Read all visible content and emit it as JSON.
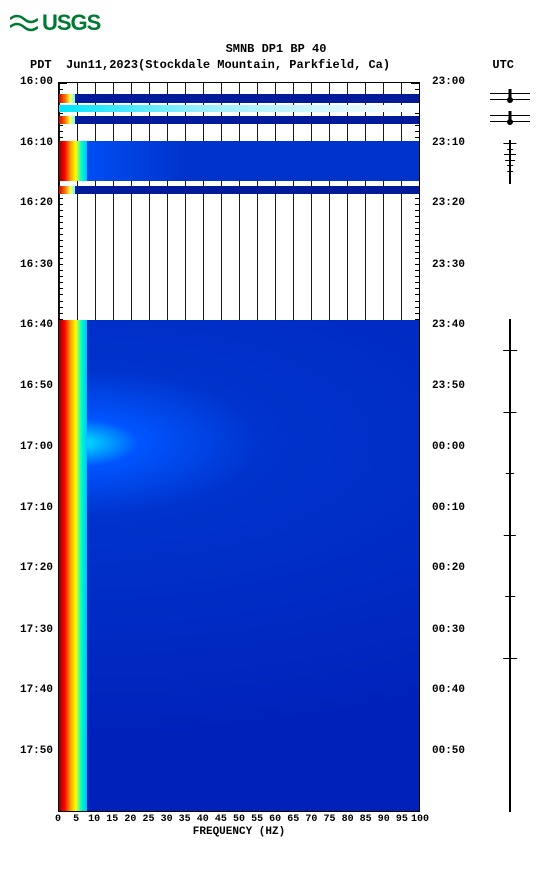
{
  "logo_text": "USGS",
  "title": "SMNB DP1 BP 40",
  "subtitle_left_tz": "PDT",
  "subtitle_date": "Jun11,2023(Stockdale Mountain, Parkfield, Ca)",
  "subtitle_right_tz": "UTC",
  "xlabel": "FREQUENCY (HZ)",
  "x_ticks": [
    "0",
    "5",
    "10",
    "15",
    "20",
    "25",
    "30",
    "35",
    "40",
    "45",
    "50",
    "55",
    "60",
    "65",
    "70",
    "75",
    "80",
    "85",
    "90",
    "95",
    "100"
  ],
  "y_left_labels": [
    {
      "t": "16:00",
      "pct": 0
    },
    {
      "t": "16:10",
      "pct": 8.3
    },
    {
      "t": "16:20",
      "pct": 16.6
    },
    {
      "t": "16:30",
      "pct": 25
    },
    {
      "t": "16:40",
      "pct": 33.3
    },
    {
      "t": "16:50",
      "pct": 41.6
    },
    {
      "t": "17:00",
      "pct": 50
    },
    {
      "t": "17:10",
      "pct": 58.3
    },
    {
      "t": "17:20",
      "pct": 66.6
    },
    {
      "t": "17:30",
      "pct": 75
    },
    {
      "t": "17:40",
      "pct": 83.3
    },
    {
      "t": "17:50",
      "pct": 91.6
    }
  ],
  "y_right_labels": [
    {
      "t": "23:00",
      "pct": 0
    },
    {
      "t": "23:10",
      "pct": 8.3
    },
    {
      "t": "23:20",
      "pct": 16.6
    },
    {
      "t": "23:30",
      "pct": 25
    },
    {
      "t": "23:40",
      "pct": 33.3
    },
    {
      "t": "23:50",
      "pct": 41.6
    },
    {
      "t": "00:00",
      "pct": 50
    },
    {
      "t": "00:10",
      "pct": 58.3
    },
    {
      "t": "00:20",
      "pct": 66.6
    },
    {
      "t": "00:30",
      "pct": 75
    },
    {
      "t": "00:40",
      "pct": 83.3
    },
    {
      "t": "00:50",
      "pct": 91.6
    }
  ],
  "minor_tick_step_pct": 0.83,
  "colors": {
    "logo": "#007a33",
    "background": "#ffffff",
    "spectrogram_blue": "#0033cc",
    "spectrogram_blue_light": "#0055ff",
    "spectrogram_cyan": "#00e5ff",
    "band_deep": "#001a99",
    "hot_red": "#cc0000",
    "hot_orange": "#ff8800",
    "hot_yellow": "#ffee00"
  },
  "bands": [
    {
      "top_pct": 1.5,
      "h_pct": 1.2,
      "type": "deep_thin",
      "hot": true
    },
    {
      "top_pct": 3.0,
      "h_pct": 1.0,
      "type": "cyan_thin",
      "hot": false
    },
    {
      "top_pct": 4.5,
      "h_pct": 1.2,
      "type": "deep_thin",
      "hot": true
    },
    {
      "top_pct": 8.0,
      "h_pct": 5.5,
      "type": "blue_block",
      "hot": true
    },
    {
      "top_pct": 14.2,
      "h_pct": 1.0,
      "type": "deep_thin",
      "hot": true
    },
    {
      "top_pct": 32.5,
      "h_pct": 67.5,
      "type": "blue_big",
      "hot": true
    }
  ],
  "side_bursts": [
    {
      "top_pct": 1.5,
      "h_pct": 1.0,
      "shape": "line"
    },
    {
      "top_pct": 2.3,
      "h_pct": 0.3,
      "shape": "linec"
    },
    {
      "top_pct": 4.5,
      "h_pct": 1.0,
      "shape": "line"
    },
    {
      "top_pct": 5.3,
      "h_pct": 0.3,
      "shape": "linec"
    },
    {
      "top_pct": 8.0,
      "h_pct": 6.0,
      "shape": "trace"
    },
    {
      "top_pct": 32.5,
      "h_pct": 67.5,
      "shape": "trace"
    }
  ]
}
